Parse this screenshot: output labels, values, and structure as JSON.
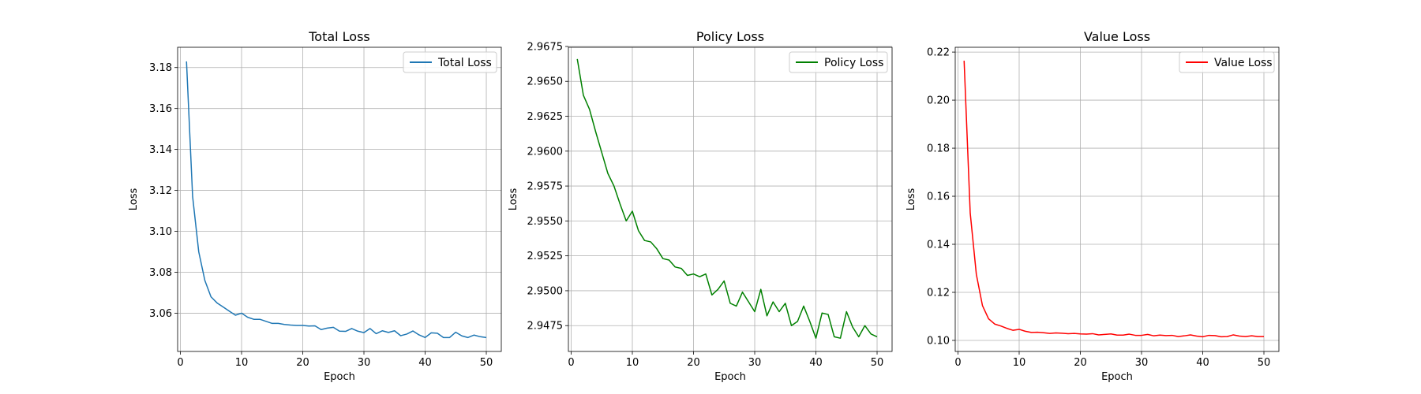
{
  "chart_data": [
    {
      "type": "line",
      "title": "Total Loss",
      "xlabel": "Epoch",
      "ylabel": "Loss",
      "xlim": [
        -0.45,
        52.45
      ],
      "ylim": [
        3.0413,
        3.1899
      ],
      "xticks": [
        0,
        10,
        20,
        30,
        40,
        50
      ],
      "yticks": [
        3.06,
        3.08,
        3.1,
        3.12,
        3.14,
        3.16,
        3.18
      ],
      "ytick_labels": [
        "3.06",
        "3.08",
        "3.10",
        "3.12",
        "3.14",
        "3.16",
        "3.18"
      ],
      "grid": true,
      "legend_position": "upper right",
      "series": [
        {
          "name": "Total Loss",
          "color": "#1f77b4",
          "x": [
            1,
            2,
            3,
            4,
            5,
            6,
            7,
            8,
            9,
            10,
            11,
            12,
            13,
            14,
            15,
            16,
            17,
            18,
            19,
            20,
            21,
            22,
            23,
            24,
            25,
            26,
            27,
            28,
            29,
            30,
            31,
            32,
            33,
            34,
            35,
            36,
            37,
            38,
            39,
            40,
            41,
            42,
            43,
            44,
            45,
            46,
            47,
            48,
            49,
            50
          ],
          "y": [
            3.183,
            3.117,
            3.09,
            3.076,
            3.068,
            3.065,
            3.063,
            3.061,
            3.059,
            3.06,
            3.058,
            3.057,
            3.057,
            3.056,
            3.055,
            3.055,
            3.0545,
            3.0542,
            3.054,
            3.054,
            3.0537,
            3.0538,
            3.052,
            3.0527,
            3.0531,
            3.0512,
            3.0511,
            3.0525,
            3.0512,
            3.0505,
            3.0525,
            3.05,
            3.0514,
            3.0506,
            3.0514,
            3.049,
            3.0498,
            3.0513,
            3.0494,
            3.0481,
            3.0504,
            3.0502,
            3.0481,
            3.0481,
            3.0507,
            3.0489,
            3.0481,
            3.0493,
            3.0485,
            3.0481
          ]
        }
      ]
    },
    {
      "type": "line",
      "title": "Policy Loss",
      "xlabel": "Epoch",
      "ylabel": "Loss",
      "xlim": [
        -0.45,
        52.45
      ],
      "ylim": [
        2.94565,
        2.96744
      ],
      "xticks": [
        0,
        10,
        20,
        30,
        40,
        50
      ],
      "yticks": [
        2.9475,
        2.95,
        2.9525,
        2.955,
        2.9575,
        2.96,
        2.9625,
        2.965,
        2.9675
      ],
      "ytick_labels": [
        "2.9475",
        "2.9500",
        "2.9525",
        "2.9550",
        "2.9575",
        "2.9600",
        "2.9625",
        "2.9650",
        "2.9675"
      ],
      "grid": true,
      "legend_position": "upper right",
      "series": [
        {
          "name": "Policy Loss",
          "color": "#008000",
          "x": [
            1,
            2,
            3,
            4,
            5,
            6,
            7,
            8,
            9,
            10,
            11,
            12,
            13,
            14,
            15,
            16,
            17,
            18,
            19,
            20,
            21,
            22,
            23,
            24,
            25,
            26,
            27,
            28,
            29,
            30,
            31,
            32,
            33,
            34,
            35,
            36,
            37,
            38,
            39,
            40,
            41,
            42,
            43,
            44,
            45,
            46,
            47,
            48,
            49,
            50
          ],
          "y": [
            2.9666,
            2.964,
            2.963,
            2.9614,
            2.9599,
            2.9584,
            2.9575,
            2.9562,
            2.955,
            2.9557,
            2.9543,
            2.9536,
            2.9535,
            2.953,
            2.9523,
            2.9522,
            2.9517,
            2.9516,
            2.9511,
            2.9512,
            2.951,
            2.9512,
            2.9497,
            2.9501,
            2.9507,
            2.9491,
            2.9489,
            2.9499,
            2.9492,
            2.9485,
            2.9501,
            2.9482,
            2.9492,
            2.9485,
            2.9491,
            2.9475,
            2.9478,
            2.9489,
            2.9478,
            2.9466,
            2.9484,
            2.9483,
            2.9467,
            2.9466,
            2.9485,
            2.9474,
            2.9467,
            2.9475,
            2.9469,
            2.9467
          ]
        }
      ]
    },
    {
      "type": "line",
      "title": "Value Loss",
      "xlabel": "Epoch",
      "ylabel": "Loss",
      "xlim": [
        -0.45,
        52.45
      ],
      "ylim": [
        0.0954,
        0.222
      ],
      "xticks": [
        0,
        10,
        20,
        30,
        40,
        50
      ],
      "yticks": [
        0.1,
        0.12,
        0.14,
        0.16,
        0.18,
        0.2,
        0.22
      ],
      "ytick_labels": [
        "0.10",
        "0.12",
        "0.14",
        "0.16",
        "0.18",
        "0.20",
        "0.22"
      ],
      "grid": true,
      "legend_position": "upper right",
      "series": [
        {
          "name": "Value Loss",
          "color": "#ff0000",
          "x": [
            1,
            2,
            3,
            4,
            5,
            6,
            7,
            8,
            9,
            10,
            11,
            12,
            13,
            14,
            15,
            16,
            17,
            18,
            19,
            20,
            21,
            22,
            23,
            24,
            25,
            26,
            27,
            28,
            29,
            30,
            31,
            32,
            33,
            34,
            35,
            36,
            37,
            38,
            39,
            40,
            41,
            42,
            43,
            44,
            45,
            46,
            47,
            48,
            49,
            50
          ],
          "y": [
            0.2164,
            0.153,
            0.1275,
            0.1145,
            0.109,
            0.1068,
            0.106,
            0.105,
            0.1042,
            0.1046,
            0.1038,
            0.1033,
            0.1034,
            0.1032,
            0.1029,
            0.1031,
            0.103,
            0.1028,
            0.1029,
            0.1027,
            0.1026,
            0.1028,
            0.1023,
            0.1025,
            0.1027,
            0.1022,
            0.1022,
            0.1026,
            0.1021,
            0.1021,
            0.1025,
            0.1019,
            0.1022,
            0.102,
            0.1021,
            0.1016,
            0.1019,
            0.1023,
            0.1018,
            0.1015,
            0.1021,
            0.102,
            0.1015,
            0.1016,
            0.1023,
            0.1018,
            0.1016,
            0.1019,
            0.1016,
            0.1016
          ]
        }
      ]
    }
  ]
}
